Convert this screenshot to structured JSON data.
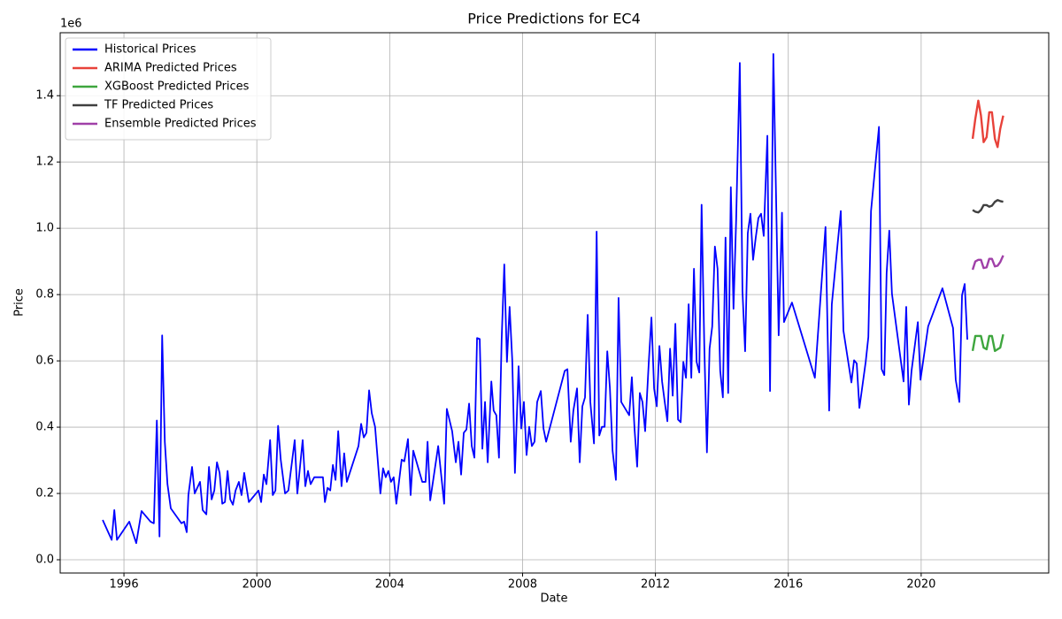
{
  "chart_data": {
    "type": "line",
    "title": "Price Predictions for EC4",
    "x_label": "Date",
    "y_label": "Price",
    "offset_text": "1e6",
    "xlim": [
      1994.08,
      2023.84
    ],
    "ylim": [
      -0.04,
      1.59
    ],
    "xticks": [
      1996,
      2000,
      2004,
      2008,
      2012,
      2016,
      2020
    ],
    "yticks": [
      {
        "value": 0,
        "label": "0.0"
      },
      0.2,
      0.4,
      0.6,
      0.8,
      {
        "value": 1,
        "label": "1.0"
      },
      1.2,
      1.4
    ],
    "grid": true,
    "legend_position": "upper-left",
    "series": [
      {
        "name": "Historical Prices",
        "color": "#0000ff",
        "x": [
          1995.36,
          1995.63,
          1995.71,
          1995.79,
          1996.16,
          1996.37,
          1996.53,
          1996.8,
          1996.9,
          1996.99,
          1997.07,
          1997.15,
          1997.23,
          1997.31,
          1997.41,
          1997.73,
          1997.81,
          1997.89,
          1997.94,
          1998.05,
          1998.13,
          1998.29,
          1998.37,
          1998.48,
          1998.56,
          1998.64,
          1998.72,
          1998.8,
          1998.88,
          1998.96,
          1999.04,
          1999.12,
          1999.2,
          1999.28,
          1999.36,
          1999.46,
          1999.54,
          1999.62,
          1999.76,
          2000.05,
          2000.13,
          2000.21,
          2000.29,
          2000.4,
          2000.48,
          2000.56,
          2000.64,
          2000.72,
          2000.85,
          2000.95,
          2001.14,
          2001.22,
          2001.38,
          2001.46,
          2001.54,
          2001.62,
          2001.73,
          2001.99,
          2002.05,
          2002.13,
          2002.21,
          2002.29,
          2002.37,
          2002.45,
          2002.55,
          2002.63,
          2002.71,
          2003.06,
          2003.14,
          2003.22,
          2003.3,
          2003.38,
          2003.46,
          2003.56,
          2003.72,
          2003.8,
          2003.88,
          2003.96,
          2004.04,
          2004.12,
          2004.2,
          2004.28,
          2004.36,
          2004.44,
          2004.55,
          2004.63,
          2004.71,
          2004.98,
          2005.08,
          2005.14,
          2005.22,
          2005.46,
          2005.64,
          2005.72,
          2005.88,
          2005.99,
          2006.07,
          2006.15,
          2006.23,
          2006.31,
          2006.39,
          2006.47,
          2006.55,
          2006.63,
          2006.71,
          2006.79,
          2006.87,
          2006.95,
          2007.06,
          2007.13,
          2007.21,
          2007.29,
          2007.37,
          2007.45,
          2007.53,
          2007.61,
          2007.69,
          2007.77,
          2007.88,
          2007.96,
          2008.04,
          2008.12,
          2008.2,
          2008.28,
          2008.36,
          2008.44,
          2008.55,
          2008.63,
          2008.71,
          2009.27,
          2009.35,
          2009.45,
          2009.53,
          2009.64,
          2009.72,
          2009.8,
          2009.88,
          2009.96,
          2010.04,
          2010.15,
          2010.23,
          2010.31,
          2010.39,
          2010.47,
          2010.55,
          2010.63,
          2010.71,
          2010.81,
          2010.89,
          2010.97,
          2011.21,
          2011.29,
          2011.37,
          2011.45,
          2011.53,
          2011.61,
          2011.69,
          2011.8,
          2011.88,
          2011.96,
          2012.04,
          2012.12,
          2012.2,
          2012.28,
          2012.36,
          2012.44,
          2012.52,
          2012.6,
          2012.68,
          2012.76,
          2012.84,
          2012.92,
          2013.0,
          2013.08,
          2013.16,
          2013.24,
          2013.32,
          2013.39,
          2013.47,
          2013.55,
          2013.63,
          2013.71,
          2013.79,
          2013.87,
          2013.95,
          2014.03,
          2014.11,
          2014.19,
          2014.27,
          2014.35,
          2014.43,
          2014.54,
          2014.62,
          2014.7,
          2014.78,
          2014.86,
          2014.94,
          2015.02,
          2015.1,
          2015.18,
          2015.26,
          2015.37,
          2015.45,
          2015.55,
          2015.63,
          2015.71,
          2015.81,
          2015.87,
          2016.11,
          2016.8,
          2017.12,
          2017.23,
          2017.31,
          2017.58,
          2017.66,
          2017.9,
          2017.98,
          2018.06,
          2018.14,
          2018.33,
          2018.41,
          2018.49,
          2018.73,
          2018.81,
          2018.89,
          2018.96,
          2019.04,
          2019.12,
          2019.47,
          2019.55,
          2019.63,
          2019.71,
          2019.9,
          2019.98,
          2020.21,
          2020.64,
          2020.96,
          2021.04,
          2021.15,
          2021.23,
          2021.31,
          2021.39
        ],
        "values": [
          0.12,
          0.06,
          0.15,
          0.06,
          0.115,
          0.05,
          0.147,
          0.115,
          0.11,
          0.42,
          0.07,
          0.677,
          0.356,
          0.228,
          0.155,
          0.11,
          0.115,
          0.083,
          0.195,
          0.28,
          0.2,
          0.235,
          0.15,
          0.137,
          0.28,
          0.182,
          0.209,
          0.294,
          0.262,
          0.169,
          0.174,
          0.268,
          0.182,
          0.166,
          0.209,
          0.235,
          0.195,
          0.262,
          0.174,
          0.209,
          0.174,
          0.257,
          0.228,
          0.361,
          0.195,
          0.209,
          0.404,
          0.302,
          0.2,
          0.209,
          0.361,
          0.2,
          0.361,
          0.222,
          0.268,
          0.228,
          0.249,
          0.249,
          0.174,
          0.217,
          0.209,
          0.286,
          0.241,
          0.388,
          0.222,
          0.321,
          0.235,
          0.343,
          0.41,
          0.369,
          0.383,
          0.511,
          0.442,
          0.401,
          0.2,
          0.276,
          0.249,
          0.268,
          0.235,
          0.249,
          0.169,
          0.235,
          0.302,
          0.297,
          0.364,
          0.195,
          0.329,
          0.235,
          0.235,
          0.356,
          0.179,
          0.343,
          0.169,
          0.455,
          0.388,
          0.294,
          0.356,
          0.257,
          0.383,
          0.393,
          0.471,
          0.343,
          0.308,
          0.669,
          0.666,
          0.335,
          0.476,
          0.294,
          0.538,
          0.45,
          0.436,
          0.308,
          0.664,
          0.891,
          0.597,
          0.763,
          0.602,
          0.262,
          0.584,
          0.396,
          0.476,
          0.316,
          0.401,
          0.343,
          0.356,
          0.476,
          0.509,
          0.396,
          0.356,
          0.57,
          0.575,
          0.356,
          0.45,
          0.517,
          0.294,
          0.463,
          0.49,
          0.739,
          0.476,
          0.351,
          0.99,
          0.375,
          0.401,
          0.401,
          0.629,
          0.517,
          0.329,
          0.241,
          0.79,
          0.476,
          0.436,
          0.551,
          0.396,
          0.281,
          0.503,
          0.476,
          0.388,
          0.597,
          0.731,
          0.517,
          0.463,
          0.645,
          0.538,
          0.476,
          0.418,
          0.637,
          0.495,
          0.712,
          0.423,
          0.415,
          0.597,
          0.549,
          0.771,
          0.549,
          0.878,
          0.597,
          0.565,
          1.071,
          0.65,
          0.324,
          0.637,
          0.704,
          0.945,
          0.878,
          0.57,
          0.49,
          0.972,
          0.503,
          1.124,
          0.757,
          1.025,
          1.499,
          0.811,
          0.629,
          0.985,
          1.044,
          0.905,
          0.972,
          1.031,
          1.044,
          0.977,
          1.279,
          0.509,
          1.526,
          1.105,
          0.677,
          1.047,
          0.717,
          0.776,
          0.549,
          1.004,
          0.45,
          0.771,
          1.052,
          0.691,
          0.535,
          0.602,
          0.592,
          0.458,
          0.597,
          0.672,
          1.052,
          1.306,
          0.575,
          0.557,
          0.865,
          0.993,
          0.803,
          0.538,
          0.763,
          0.468,
          0.57,
          0.717,
          0.543,
          0.704,
          0.819,
          0.699,
          0.543,
          0.476,
          0.798,
          0.832,
          0.664
        ]
      },
      {
        "name": "ARIMA Predicted Prices",
        "color": "#e8423a",
        "x": [
          2021.55,
          2021.63,
          2021.72,
          2021.8,
          2021.88,
          2021.97,
          2022.05,
          2022.13,
          2022.22,
          2022.3,
          2022.38,
          2022.47
        ],
        "values": [
          1.27,
          1.33,
          1.385,
          1.34,
          1.26,
          1.275,
          1.35,
          1.35,
          1.27,
          1.245,
          1.3,
          1.34
        ]
      },
      {
        "name": "XGBoost Predicted Prices",
        "color": "#3ea63e",
        "x": [
          2021.55,
          2021.63,
          2021.72,
          2021.8,
          2021.88,
          2021.97,
          2022.05,
          2022.13,
          2022.22,
          2022.3,
          2022.38,
          2022.47
        ],
        "values": [
          0.63,
          0.675,
          0.675,
          0.675,
          0.64,
          0.635,
          0.675,
          0.675,
          0.63,
          0.635,
          0.64,
          0.68
        ]
      },
      {
        "name": "TF Predicted Prices",
        "color": "#404040",
        "x": [
          2021.55,
          2021.63,
          2021.72,
          2021.8,
          2021.88,
          2021.97,
          2022.05,
          2022.13,
          2022.22,
          2022.3,
          2022.38,
          2022.47
        ],
        "values": [
          1.055,
          1.05,
          1.048,
          1.055,
          1.07,
          1.07,
          1.065,
          1.068,
          1.08,
          1.085,
          1.082,
          1.08
        ]
      },
      {
        "name": "Ensemble Predicted Prices",
        "color": "#a040a8",
        "x": [
          2021.55,
          2021.63,
          2021.72,
          2021.8,
          2021.88,
          2021.97,
          2022.05,
          2022.13,
          2022.22,
          2022.3,
          2022.38,
          2022.47
        ],
        "values": [
          0.875,
          0.9,
          0.905,
          0.905,
          0.88,
          0.882,
          0.908,
          0.908,
          0.885,
          0.887,
          0.898,
          0.918
        ]
      }
    ]
  }
}
